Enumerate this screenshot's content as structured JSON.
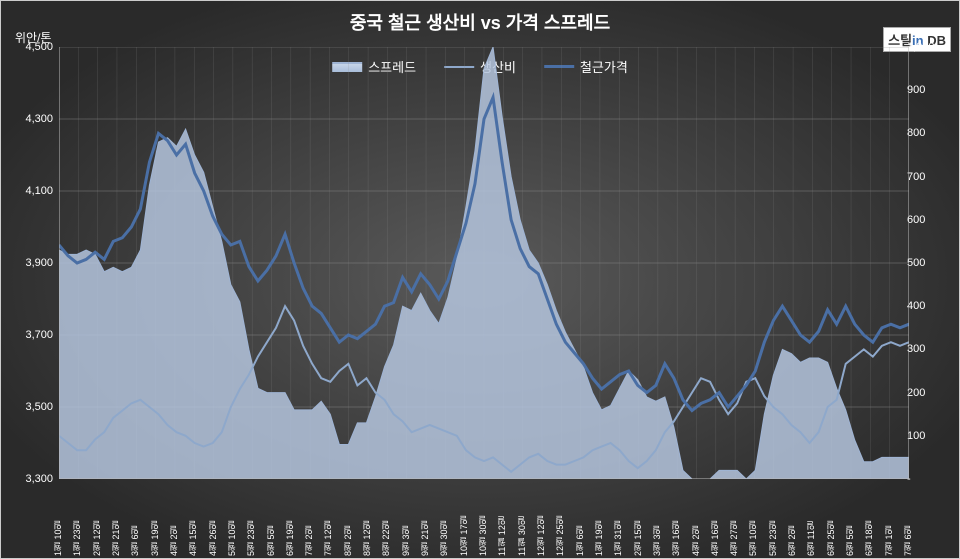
{
  "chart": {
    "type": "combo-line-area",
    "title": "중국 철근 생산비 vs 가격 스프레드",
    "y_axis_unit": "위안/톤",
    "watermark": {
      "prefix": "스틸",
      "highlight": "in",
      "suffix": " DB"
    },
    "background_gradient": [
      "#5a5a5a",
      "#2a2a2a"
    ],
    "grid_color": "#8a8a8a",
    "text_color": "#ffffff",
    "title_fontsize": 18,
    "legend": [
      {
        "label": "스프레드",
        "style": "area",
        "fill": "#b5c5de",
        "stroke": "#9fb4d4"
      },
      {
        "label": "생산비",
        "style": "line",
        "stroke": "#8ea8cb",
        "width": 2
      },
      {
        "label": "철근가격",
        "style": "line",
        "stroke": "#4a6fa5",
        "width": 3
      }
    ],
    "y_axis_left": {
      "min": 3300,
      "max": 4500,
      "step": 200,
      "ticks": [
        "3,300",
        "3,500",
        "3,700",
        "3,900",
        "4,100",
        "4,300",
        "4,500"
      ]
    },
    "y_axis_right": {
      "min": 0,
      "max": 1000,
      "step": 100,
      "ticks": [
        "-",
        "100",
        "200",
        "300",
        "400",
        "500",
        "600",
        "700",
        "800",
        "900",
        "1,000"
      ]
    },
    "x_labels": [
      "1월 10일",
      "1월 23일",
      "2월 12일",
      "2월 21일",
      "3월 6일",
      "3월 19일",
      "4월 2일",
      "4월 15일",
      "4월 26일",
      "5월 10일",
      "5월 23일",
      "6월 5일",
      "6월 19일",
      "7월 2일",
      "7월 12일",
      "8월 2일",
      "8월 12일",
      "8월 22일",
      "9월 3일",
      "9월 21일",
      "9월 30일",
      "10월 17일",
      "10월 30일",
      "11월 12일",
      "11월 30일",
      "12월 12일",
      "12월 25일",
      "1월 6일",
      "1월 19일",
      "1월 31일",
      "2월 15일",
      "3월 3일",
      "3월 16일",
      "4월 2일",
      "4월 16일",
      "4월 27일",
      "5월 10일",
      "5월 23일",
      "6월 2일",
      "6월 11일",
      "6월 25일",
      "6월 5일",
      "6월 18일",
      "7월 1일",
      "7월 6일"
    ],
    "series": {
      "rebar_price": {
        "axis": "left",
        "color": "#4a6fa5",
        "line_width": 3,
        "data": [
          3950,
          3920,
          3900,
          3910,
          3930,
          3910,
          3960,
          3970,
          4000,
          4050,
          4180,
          4260,
          4240,
          4200,
          4230,
          4150,
          4100,
          4030,
          3980,
          3950,
          3960,
          3890,
          3850,
          3880,
          3920,
          3980,
          3900,
          3830,
          3780,
          3760,
          3720,
          3680,
          3700,
          3690,
          3710,
          3730,
          3780,
          3790,
          3860,
          3820,
          3870,
          3840,
          3800,
          3850,
          3930,
          4010,
          4120,
          4300,
          4360,
          4180,
          4020,
          3940,
          3890,
          3870,
          3800,
          3730,
          3680,
          3650,
          3620,
          3580,
          3550,
          3570,
          3590,
          3600,
          3560,
          3540,
          3560,
          3620,
          3580,
          3520,
          3490,
          3510,
          3520,
          3540,
          3500,
          3530,
          3560,
          3600,
          3680,
          3740,
          3780,
          3740,
          3700,
          3680,
          3710,
          3770,
          3730,
          3780,
          3730,
          3700,
          3680,
          3720,
          3730,
          3720,
          3730
        ]
      },
      "production_cost": {
        "axis": "left",
        "color": "#8ea8cb",
        "line_width": 2,
        "data": [
          3420,
          3400,
          3380,
          3380,
          3410,
          3430,
          3470,
          3490,
          3510,
          3520,
          3500,
          3480,
          3450,
          3430,
          3420,
          3400,
          3390,
          3400,
          3430,
          3500,
          3550,
          3590,
          3640,
          3680,
          3720,
          3780,
          3740,
          3670,
          3620,
          3580,
          3570,
          3600,
          3620,
          3560,
          3580,
          3540,
          3520,
          3480,
          3460,
          3430,
          3440,
          3450,
          3440,
          3430,
          3420,
          3380,
          3360,
          3350,
          3360,
          3340,
          3320,
          3340,
          3360,
          3370,
          3350,
          3340,
          3340,
          3350,
          3360,
          3380,
          3390,
          3400,
          3380,
          3350,
          3330,
          3350,
          3380,
          3430,
          3460,
          3500,
          3540,
          3580,
          3570,
          3520,
          3480,
          3510,
          3570,
          3580,
          3530,
          3500,
          3480,
          3450,
          3430,
          3400,
          3430,
          3500,
          3520,
          3620,
          3640,
          3660,
          3640,
          3670,
          3680,
          3670,
          3680
        ]
      },
      "spread": {
        "axis": "right",
        "fill": "#b5c5de",
        "stroke": "#9fb4d4",
        "fill_opacity": 0.85,
        "data": [
          530,
          520,
          520,
          530,
          520,
          480,
          490,
          480,
          490,
          530,
          680,
          780,
          790,
          770,
          810,
          750,
          710,
          630,
          550,
          450,
          410,
          300,
          210,
          200,
          200,
          200,
          160,
          160,
          160,
          180,
          150,
          80,
          80,
          130,
          130,
          190,
          260,
          310,
          400,
          390,
          430,
          390,
          360,
          420,
          510,
          630,
          760,
          950,
          1000,
          840,
          700,
          600,
          530,
          500,
          450,
          390,
          340,
          300,
          260,
          200,
          160,
          170,
          210,
          250,
          230,
          190,
          180,
          190,
          120,
          20,
          0,
          0,
          0,
          20,
          20,
          20,
          0,
          20,
          150,
          240,
          300,
          290,
          270,
          280,
          280,
          270,
          210,
          160,
          90,
          40,
          40,
          50,
          50,
          50,
          50
        ]
      }
    }
  }
}
